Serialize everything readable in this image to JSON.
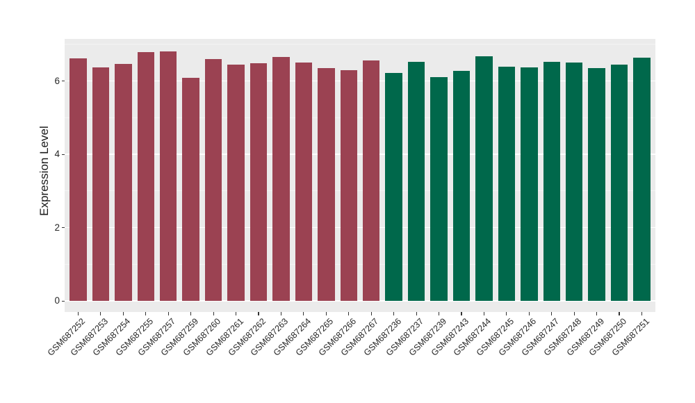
{
  "chart_data": {
    "type": "bar",
    "title": "",
    "xlabel": "",
    "ylabel": "Expression Level",
    "categories": [
      "GSM687252",
      "GSM687253",
      "GSM687254",
      "GSM687255",
      "GSM687257",
      "GSM687259",
      "GSM687260",
      "GSM687261",
      "GSM687262",
      "GSM687263",
      "GSM687264",
      "GSM687265",
      "GSM687266",
      "GSM687267",
      "GSM687236",
      "GSM687237",
      "GSM687239",
      "GSM687243",
      "GSM687244",
      "GSM687245",
      "GSM687246",
      "GSM687247",
      "GSM687248",
      "GSM687249",
      "GSM687250",
      "GSM687251"
    ],
    "values": [
      6.62,
      6.37,
      6.46,
      6.79,
      6.8,
      6.08,
      6.6,
      6.44,
      6.49,
      6.66,
      6.5,
      6.35,
      6.29,
      6.57,
      6.22,
      6.52,
      6.1,
      6.27,
      6.67,
      6.39,
      6.37,
      6.52,
      6.5,
      6.35,
      6.44,
      6.63
    ],
    "bar_group_index": [
      0,
      0,
      0,
      0,
      0,
      0,
      0,
      0,
      0,
      0,
      0,
      0,
      0,
      0,
      1,
      1,
      1,
      1,
      1,
      1,
      1,
      1,
      1,
      1,
      1,
      1
    ],
    "group_colors": [
      "#9B4252",
      "#00684B"
    ],
    "y_ticks": [
      0,
      2,
      4,
      6
    ],
    "y_tick_labels": [
      "0",
      "2",
      "4",
      "6"
    ],
    "y_minor_ticks": [
      1,
      3,
      5,
      7
    ],
    "ylim": [
      0,
      7.15
    ],
    "grid": true,
    "legend": "none",
    "panel_background": "#EBEBEB",
    "major_gridline_color": "#FFFFFF",
    "minor_gridline_color": "#F4F4F4",
    "axis_text_color": "#262626"
  }
}
